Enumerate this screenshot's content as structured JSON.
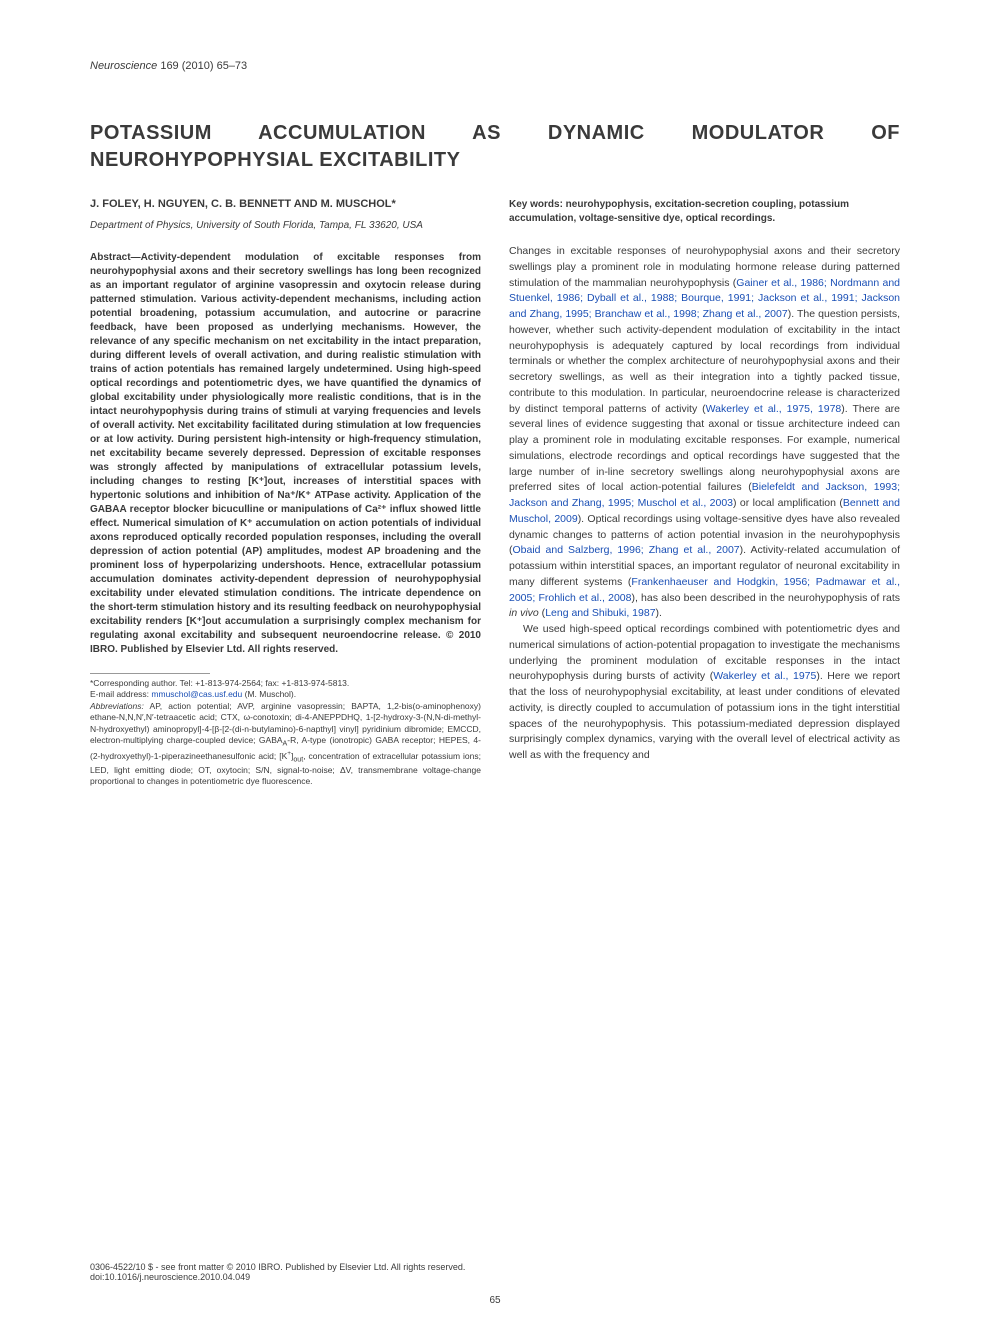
{
  "journal": {
    "name": "Neuroscience",
    "citation": " 169 (2010) 65–73"
  },
  "title": "POTASSIUM ACCUMULATION AS DYNAMIC MODULATOR OF NEUROHYPOPHYSIAL EXCITABILITY",
  "authors": "J. FOLEY, H. NGUYEN, C. B. BENNETT AND M. MUSCHOL*",
  "affiliation": "Department of Physics, University of South Florida, Tampa, FL 33620, USA",
  "abstract": "Abstract—Activity-dependent modulation of excitable responses from neurohypophysial axons and their secretory swellings has long been recognized as an important regulator of arginine vasopressin and oxytocin release during patterned stimulation. Various activity-dependent mechanisms, including action potential broadening, potassium accumulation, and autocrine or paracrine feedback, have been proposed as underlying mechanisms. However, the relevance of any specific mechanism on net excitability in the intact preparation, during different levels of overall activation, and during realistic stimulation with trains of action potentials has remained largely undetermined. Using high-speed optical recordings and potentiometric dyes, we have quantified the dynamics of global excitability under physiologically more realistic conditions, that is in the intact neurohypophysis during trains of stimuli at varying frequencies and levels of overall activity. Net excitability facilitated during stimulation at low frequencies or at low activity. During persistent high-intensity or high-frequency stimulation, net excitability became severely depressed. Depression of excitable responses was strongly affected by manipulations of extracellular potassium levels, including changes to resting [K⁺]out, increases of interstitial spaces with hypertonic solutions and inhibition of Na⁺/K⁺ ATPase activity. Application of the GABAA receptor blocker bicuculline or manipulations of Ca²⁺ influx showed little effect. Numerical simulation of K⁺ accumulation on action potentials of individual axons reproduced optically recorded population responses, including the overall depression of action potential (AP) amplitudes, modest AP broadening and the prominent loss of hyperpolarizing undershoots. Hence, extracellular potassium accumulation dominates activity-dependent depression of neurohypophysial excitability under elevated stimulation conditions. The intricate dependence on the short-term stimulation history and its resulting feedback on neurohypophysial excitability renders [K⁺]out accumulation a surprisingly complex mechanism for regulating axonal excitability and subsequent neuroendocrine release. © 2010 IBRO. Published by Elsevier Ltd. All rights reserved.",
  "footnote": {
    "corresponding": "*Corresponding author. Tel: +1-813-974-2564; fax: +1-813-974-5813.",
    "email_label": "E-mail address: ",
    "email": "mmuschol@cas.usf.edu",
    "email_suffix": " (M. Muschol).",
    "abbreviations": "Abbreviations: AP, action potential; AVP, arginine vasopressin; BAPTA, 1,2-bis(o-aminophenoxy) ethane-N,N,N′,N′-tetraacetic acid; CTX, ω-conotoxin; di-4-ANEPPDHQ, 1-[2-hydroxy-3-(N,N-di-methyl-N-hydroxyethyl) aminopropyl]-4-[β-[2-(di-n-butylamino)-6-napthyl] vinyl] pyridinium dibromide; EMCCD, electron-multiplying charge-coupled device; GABAA-R, A-type (ionotropic) GABA receptor; HEPES, 4-(2-hydroxyethyl)-1-piperazineethanesulfonic acid; [K⁺]out, concentration of extracellular potassium ions; LED, light emitting diode; OT, oxytocin; S/N, signal-to-noise; ΔV, transmembrane voltage-change proportional to changes in potentiometric dye fluorescence."
  },
  "keywords": "Key words: neurohypophysis, excitation-secretion coupling, potassium accumulation, voltage-sensitive dye, optical recordings.",
  "body": {
    "p1_a": "Changes in excitable responses of neurohypophysial axons and their secretory swellings play a prominent role in modulating hormone release during patterned stimulation of the mammalian neurohypophysis (",
    "p1_ref1": "Gainer et al., 1986; Nordmann and Stuenkel, 1986; Dyball et al., 1988; Bourque, 1991; Jackson et al., 1991; Jackson and Zhang, 1995; Branchaw et al., 1998; Zhang et al., 2007",
    "p1_b": "). The question persists, however, whether such activity-dependent modulation of excitability in the intact neurohypophysis is adequately captured by local recordings from individual terminals or whether the complex architecture of neurohypophysial axons and their secretory swellings, as well as their integration into a tightly packed tissue, contribute to this modulation. In particular, neuroendocrine release is characterized by distinct temporal patterns of activity (",
    "p1_ref2": "Wakerley et al., 1975, 1978",
    "p1_c": "). There are several lines of evidence suggesting that axonal or tissue architecture indeed can play a prominent role in modulating excitable responses. For example, numerical simulations, electrode recordings and optical recordings have suggested that the large number of in-line secretory swellings along neurohypophysial axons are preferred sites of local action-potential failures (",
    "p1_ref3": "Bielefeldt and Jackson, 1993; Jackson and Zhang, 1995; Muschol et al., 2003",
    "p1_d": ") or local amplification (",
    "p1_ref4": "Bennett and Muschol, 2009",
    "p1_e": "). Optical recordings using voltage-sensitive dyes have also revealed dynamic changes to patterns of action potential invasion in the neurohypophysis (",
    "p1_ref5": "Obaid and Salzberg, 1996; Zhang et al., 2007",
    "p1_f": "). Activity-related accumulation of potassium within interstitial spaces, an important regulator of neuronal excitability in many different systems (",
    "p1_ref6": "Frankenhaeuser and Hodgkin, 1956; Padmawar et al., 2005; Frohlich et al., 2008",
    "p1_g": "), has also been described in the neurohypophysis of rats ",
    "p1_ital": "in vivo",
    "p1_h": " (",
    "p1_ref7": "Leng and Shibuki, 1987",
    "p1_i": ").",
    "p2_a": "We used high-speed optical recordings combined with potentiometric dyes and numerical simulations of action-potential propagation to investigate the mechanisms underlying the prominent modulation of excitable responses in the intact neurohypophysis during bursts of activity (",
    "p2_ref1": "Wakerley et al., 1975",
    "p2_b": "). Here we report that the loss of neurohypophysial excitability, at least under conditions of elevated activity, is directly coupled to accumulation of potassium ions in the tight interstitial spaces of the neurohypophysis. This potassium-mediated depression displayed surprisingly complex dynamics, varying with the overall level of electrical activity as well as with the frequency and"
  },
  "footer": {
    "line1": "0306-4522/10 $ - see front matter © 2010 IBRO. Published by Elsevier Ltd. All rights reserved.",
    "line2": "doi:10.1016/j.neuroscience.2010.04.049"
  },
  "page_number": "65",
  "colors": {
    "text": "#3a3a3a",
    "link": "#1a4fb5",
    "background": "#ffffff"
  },
  "typography": {
    "title_fontsize": 20,
    "body_fontsize": 10.5,
    "abstract_fontsize": 10,
    "footnote_fontsize": 8.5,
    "font_family": "Arial, Helvetica, sans-serif"
  }
}
